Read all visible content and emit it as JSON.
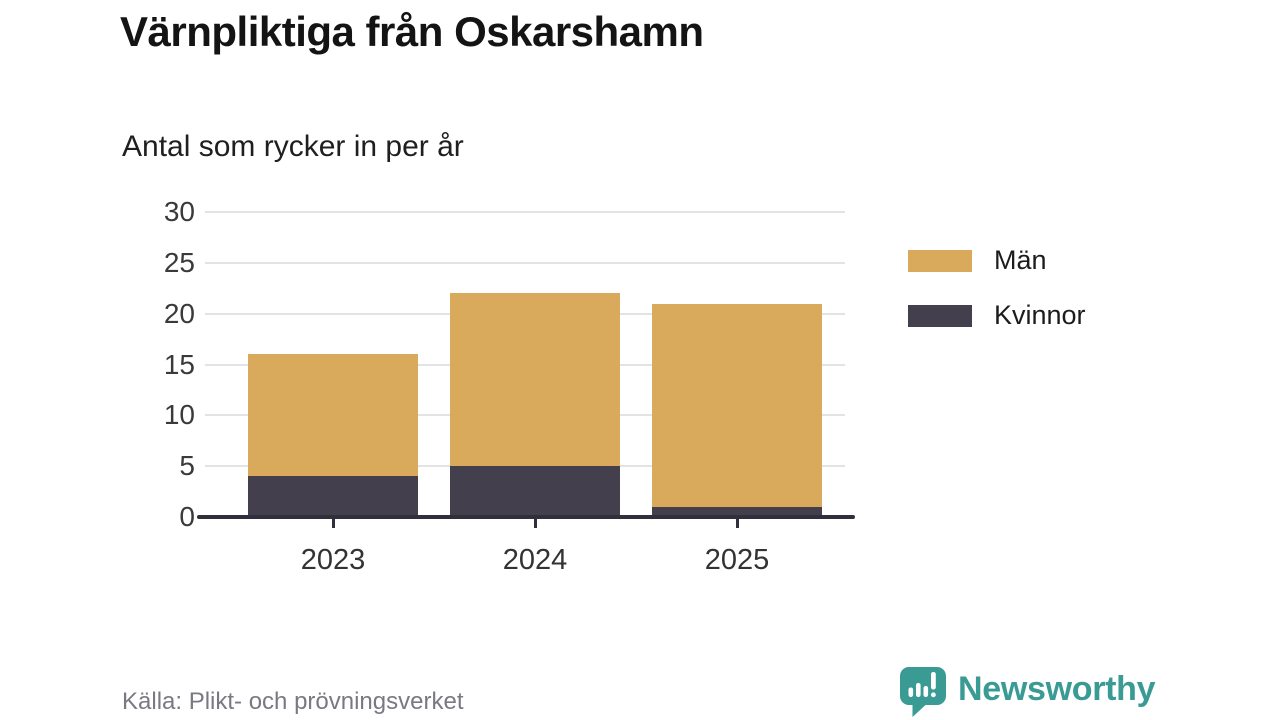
{
  "chart_data": {
    "type": "bar",
    "stacked": true,
    "title": "Värnpliktiga från Oskarshamn",
    "subtitle": "Antal som rycker in per år",
    "source": "Källa: Plikt- och prövningsverket",
    "categories": [
      "2023",
      "2024",
      "2025"
    ],
    "series": [
      {
        "name": "Män",
        "color": "#D9A95C",
        "values": [
          12,
          17,
          20
        ]
      },
      {
        "name": "Kvinnor",
        "color": "#433F4D",
        "values": [
          4,
          5,
          1
        ]
      }
    ],
    "stack_totals": [
      16,
      22,
      21
    ],
    "ylim": [
      0,
      30
    ],
    "yticks": [
      0,
      5,
      10,
      15,
      20,
      25,
      30
    ],
    "grid": true,
    "grid_color": "#E3E3E3",
    "axis_color": "#322F3D",
    "legend_position": "right",
    "xlabel": "",
    "ylabel": ""
  },
  "branding": {
    "name": "Newsworthy",
    "color": "#3A9A94",
    "icon": "newsworthy-speech-bubble-chart-icon"
  }
}
